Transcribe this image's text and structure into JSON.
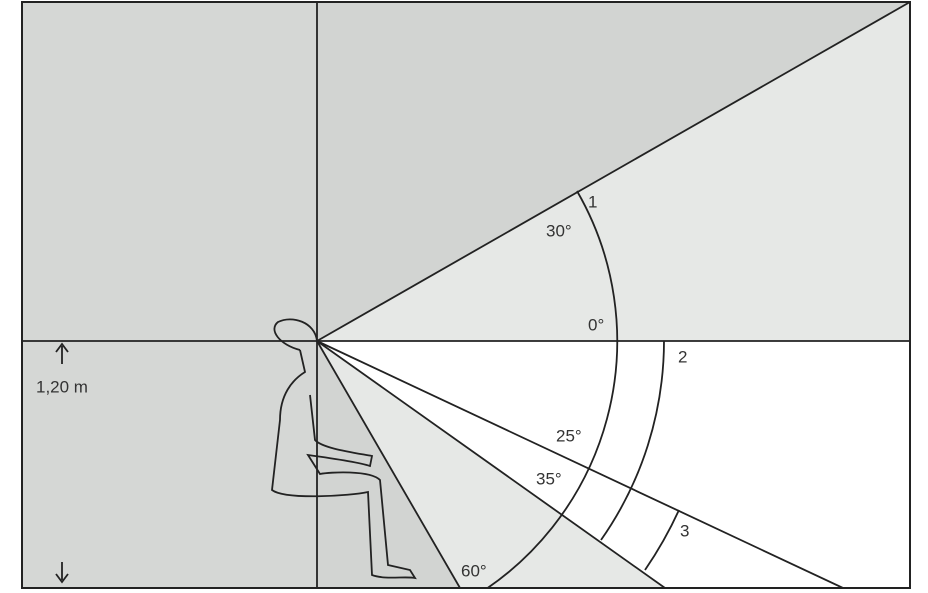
{
  "labels": {
    "zone_1": "1",
    "angle_up": "30°",
    "angle_zero": "0°",
    "zone_2": "2",
    "angle_25": "25°",
    "angle_35": "35°",
    "zone_3": "3",
    "angle_60": "60°",
    "height": "1,20 m"
  }
}
